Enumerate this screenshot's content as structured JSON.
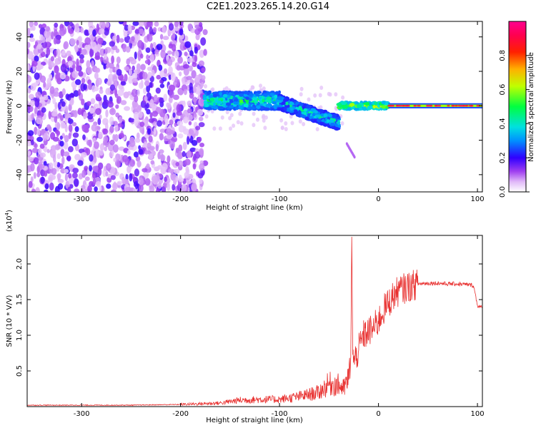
{
  "figure": {
    "title": "C2E1.2023.265.14.20.G14"
  },
  "colors": {
    "snr_line": "#e8302f",
    "spectrogram_palette": [
      "#e9d4f8",
      "#c77ff0",
      "#7f20f0",
      "#3a10e8",
      "#1030ff",
      "#00b8ff",
      "#00e8c0",
      "#40f040",
      "#d0f000",
      "#ff8000",
      "#ff1010",
      "#ff00a0"
    ]
  },
  "chart_data": [
    {
      "type": "heatmap",
      "xlabel": "Height of straight line (km)",
      "ylabel": "Frequency (Hz)",
      "xlim": [
        -355,
        105
      ],
      "ylim": [
        -50,
        49
      ],
      "xticks": [
        -300,
        -200,
        -100,
        0,
        100
      ],
      "yticks": [
        -40,
        -20,
        0,
        20,
        40
      ],
      "grid": false,
      "colorbar": {
        "label": "Normalized spectral amplitude",
        "range": [
          0.0,
          1.0
        ],
        "ticks": [
          "0.0",
          "0.2",
          "0.4",
          "0.6",
          "0.8"
        ]
      },
      "regions": [
        {
          "x_range": [
            -355,
            -175
          ],
          "f_range": [
            -50,
            49
          ],
          "amplitude": 0.1,
          "description_type": "noise"
        },
        {
          "x_range": [
            -175,
            -100
          ],
          "f_center": 3,
          "f_width": 10,
          "amplitude": 0.45
        },
        {
          "x_range": [
            -100,
            -40
          ],
          "f_center_start": 2,
          "f_center_end": -10,
          "f_width": 8,
          "amplitude": 0.4
        },
        {
          "x_range": [
            -40,
            10
          ],
          "f_center": 0,
          "f_width": 4,
          "amplitude": 0.6
        },
        {
          "x_range": [
            10,
            105
          ],
          "f_center": 0,
          "f_width": 2,
          "amplitude": 0.95
        }
      ]
    },
    {
      "type": "line",
      "xlabel": "Height of straight line (km)",
      "ylabel": "SNR (10 * V/V)",
      "y_scale_label": "(x10",
      "y_scale_exponent": "4",
      "xlim": [
        -355,
        105
      ],
      "ylim": [
        0.0,
        2.4
      ],
      "xticks": [
        -300,
        -200,
        -100,
        0,
        100
      ],
      "yticks": [
        "0.5",
        "1.0",
        "1.5",
        "2.0"
      ],
      "grid": false,
      "series": [
        {
          "x": [
            -355,
            -300,
            -250,
            -200,
            -160,
            -140,
            -120,
            -100,
            -80,
            -60,
            -50,
            -40,
            -35,
            -30,
            -28,
            -27,
            -26,
            -25,
            -20,
            -15,
            -10,
            -5,
            0,
            5,
            10,
            15,
            20,
            30,
            40,
            50,
            60,
            70,
            80,
            90,
            96,
            100,
            105
          ],
          "y": [
            0.02,
            0.02,
            0.02,
            0.03,
            0.05,
            0.09,
            0.1,
            0.1,
            0.14,
            0.2,
            0.32,
            0.3,
            0.25,
            0.4,
            0.7,
            2.38,
            0.8,
            0.6,
            0.8,
            1.0,
            1.05,
            1.1,
            1.2,
            1.35,
            1.45,
            1.55,
            1.62,
            1.68,
            1.72,
            1.73,
            1.73,
            1.72,
            1.72,
            1.71,
            1.7,
            1.42,
            1.38
          ]
        }
      ]
    }
  ]
}
